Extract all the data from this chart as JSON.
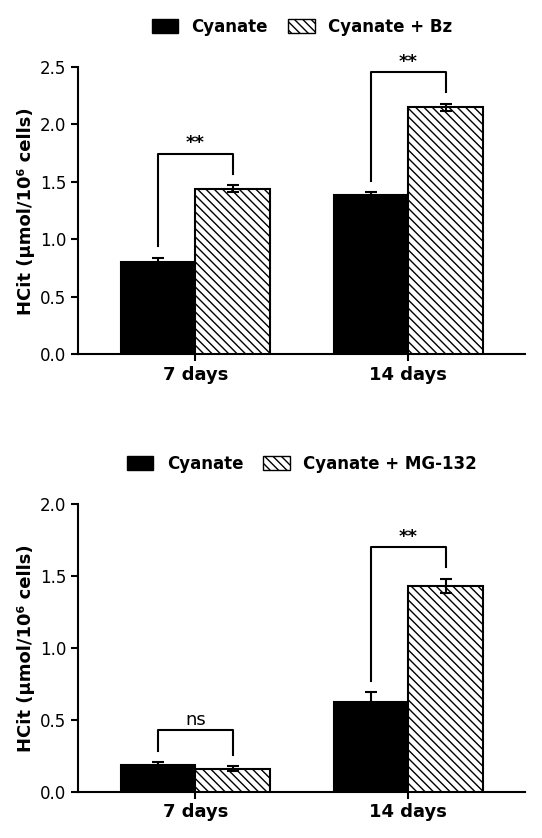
{
  "chart1": {
    "legend_labels": [
      "Cyanate",
      "Cyanate + Bz"
    ],
    "groups": [
      "7 days",
      "14 days"
    ],
    "bar1_values": [
      0.8,
      1.39
    ],
    "bar1_errors": [
      0.04,
      0.02
    ],
    "bar2_values": [
      1.44,
      2.15
    ],
    "bar2_errors": [
      0.03,
      0.03
    ],
    "ylim": [
      0,
      2.5
    ],
    "yticks": [
      0.0,
      0.5,
      1.0,
      1.5,
      2.0,
      2.5
    ],
    "ylabel": "HCit (μmol/10⁶ cells)",
    "sig_labels": [
      "**",
      "**"
    ]
  },
  "chart2": {
    "legend_labels": [
      "Cyanate",
      "Cyanate + MG-132"
    ],
    "groups": [
      "7 days",
      "14 days"
    ],
    "bar1_values": [
      0.185,
      0.62
    ],
    "bar1_errors": [
      0.02,
      0.07
    ],
    "bar2_values": [
      0.16,
      1.43
    ],
    "bar2_errors": [
      0.015,
      0.05
    ],
    "ylim": [
      0,
      2.0
    ],
    "yticks": [
      0.0,
      0.5,
      1.0,
      1.5,
      2.0
    ],
    "ylabel": "HCit (μmol/10⁶ cells)",
    "sig_labels": [
      "ns",
      "**"
    ]
  },
  "bar_width": 0.35,
  "group_positions": [
    0.0,
    1.0
  ],
  "solid_color": "#000000",
  "hatch_pattern": "\\\\\\\\",
  "hatch_color": "#000000",
  "hatch_facecolor": "#ffffff",
  "background_color": "#ffffff",
  "fontsize_labels": 13,
  "fontsize_ticks": 12,
  "fontsize_legend": 12,
  "fontsize_sig": 13
}
